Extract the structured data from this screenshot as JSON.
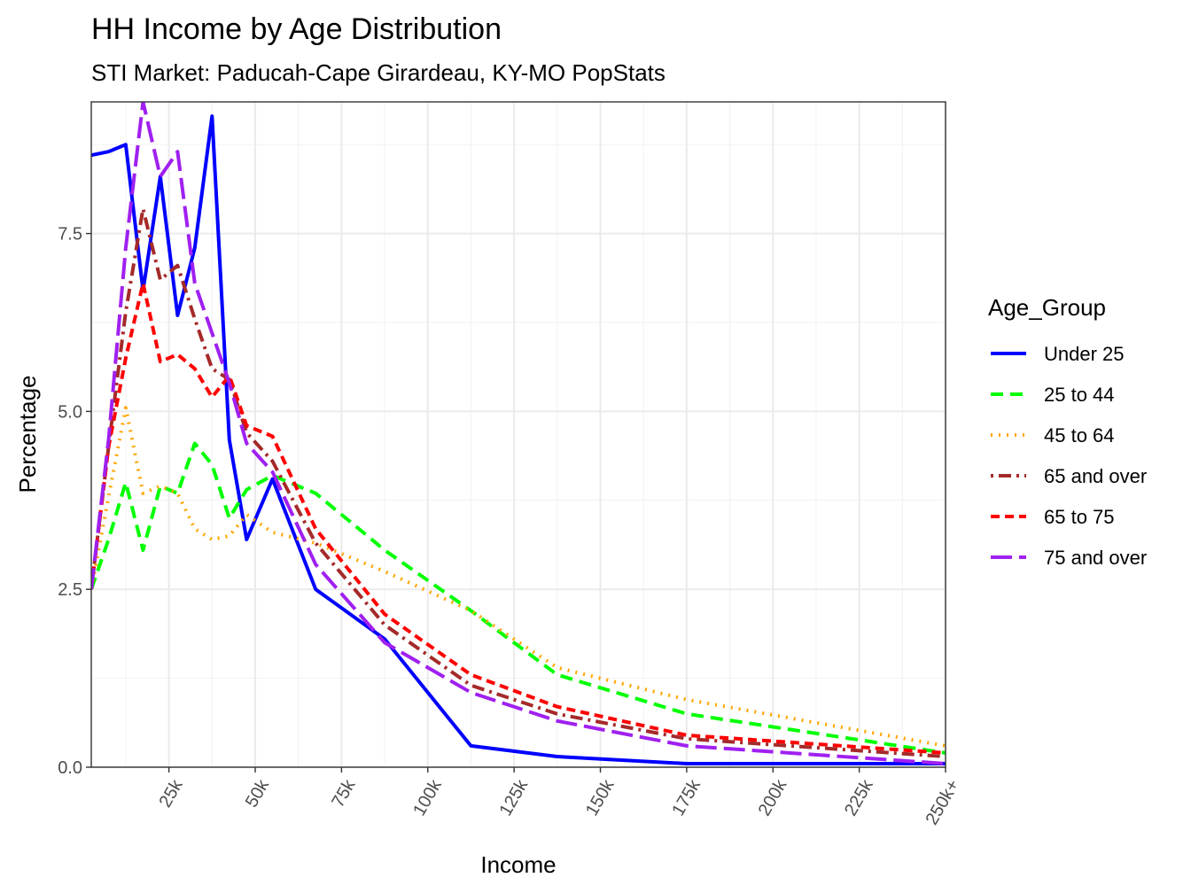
{
  "chart_data": {
    "type": "line",
    "title": "HH Income by Age Distribution",
    "subtitle": "STI Market: Paducah-Cape Girardeau, KY-MO PopStats",
    "xlabel": "Income",
    "ylabel": "Percentage",
    "x_ticks": [
      {
        "value": 25000,
        "label": "25k"
      },
      {
        "value": 50000,
        "label": "50k"
      },
      {
        "value": 75000,
        "label": "75k"
      },
      {
        "value": 100000,
        "label": "100k"
      },
      {
        "value": 125000,
        "label": "125k"
      },
      {
        "value": 150000,
        "label": "150k"
      },
      {
        "value": 175000,
        "label": "175k"
      },
      {
        "value": 200000,
        "label": "200k"
      },
      {
        "value": 225000,
        "label": "225k"
      },
      {
        "value": 250000,
        "label": "250k+"
      }
    ],
    "y_ticks": [
      {
        "value": 0,
        "label": "0.0"
      },
      {
        "value": 2.5,
        "label": "2.5"
      },
      {
        "value": 5,
        "label": "5.0"
      },
      {
        "value": 7.5,
        "label": "7.5"
      }
    ],
    "xlim": [
      2500,
      250000
    ],
    "ylim": [
      0,
      9.35
    ],
    "grid": true,
    "legend_title": "Age_Group",
    "legend_position": "right",
    "x": [
      2500,
      7500,
      12500,
      17500,
      22500,
      27500,
      32500,
      37500,
      42500,
      47500,
      55000,
      67500,
      87500,
      112500,
      137500,
      175000,
      250000
    ],
    "series": [
      {
        "name": "Under 25",
        "color": "#0000ff",
        "dash": "solid",
        "values": [
          8.6,
          8.65,
          8.75,
          6.7,
          8.3,
          6.35,
          7.3,
          9.15,
          4.6,
          3.2,
          4.05,
          2.5,
          1.8,
          0.3,
          0.15,
          0.05,
          0.05
        ]
      },
      {
        "name": "25 to 44",
        "color": "#00ff00",
        "dash": "dashed",
        "values": [
          2.5,
          3.2,
          4.0,
          3.05,
          3.95,
          3.85,
          4.55,
          4.25,
          3.5,
          3.9,
          4.1,
          3.85,
          3.05,
          2.2,
          1.3,
          0.75,
          0.2
        ]
      },
      {
        "name": "45 to 64",
        "color": "#ffa500",
        "dash": "dotted",
        "values": [
          2.5,
          3.8,
          5.05,
          3.85,
          3.95,
          3.85,
          3.35,
          3.2,
          3.25,
          3.55,
          3.3,
          3.15,
          2.75,
          2.2,
          1.4,
          0.95,
          0.3
        ]
      },
      {
        "name": "65 and over",
        "color": "#a52a2a",
        "dash": "dotdash",
        "values": [
          2.5,
          4.5,
          6.4,
          7.85,
          6.85,
          7.05,
          6.3,
          5.6,
          5.45,
          4.7,
          4.3,
          3.15,
          2.0,
          1.15,
          0.75,
          0.4,
          0.15
        ]
      },
      {
        "name": "65 to 75",
        "color": "#ff0000",
        "dash": "shortdash",
        "values": [
          2.5,
          4.5,
          5.75,
          6.8,
          5.7,
          5.8,
          5.6,
          5.2,
          5.5,
          4.8,
          4.65,
          3.35,
          2.15,
          1.3,
          0.85,
          0.45,
          0.2
        ]
      },
      {
        "name": "75 and over",
        "color": "#a020f0",
        "dash": "longdash",
        "values": [
          2.5,
          4.6,
          7.3,
          9.35,
          8.3,
          8.65,
          6.8,
          6.1,
          5.4,
          4.55,
          4.15,
          2.85,
          1.75,
          1.05,
          0.65,
          0.3,
          0.05
        ]
      }
    ]
  }
}
